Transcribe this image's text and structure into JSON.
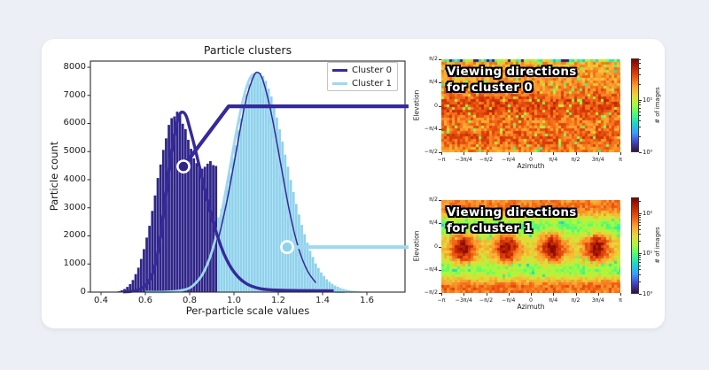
{
  "page": {
    "background": "#edeff6",
    "card_background": "#ffffff"
  },
  "colors": {
    "cluster0_bar": "#2f2589",
    "cluster0_line": "#36299a",
    "cluster1_bar": "#8fd2ec",
    "cluster1_line": "#9fd8ee",
    "axis": "#2b2b2b",
    "text": "#1c1c1c"
  },
  "chart_data": [
    {
      "type": "histogram",
      "title": "Particle clusters",
      "xlabel": "Per-particle scale values",
      "ylabel": "Particle count",
      "xlim": [
        0.352,
        1.772
      ],
      "ylim": [
        0,
        8220
      ],
      "x_tick_labels": [
        "0.4",
        "0.6",
        "0.8",
        "1.0",
        "1.2",
        "1.4",
        "1.6"
      ],
      "x_tick_values": [
        0.4,
        0.6,
        0.8,
        1.0,
        1.2,
        1.4,
        1.6
      ],
      "y_tick_labels": [
        "0",
        "1000",
        "2000",
        "3000",
        "4000",
        "5000",
        "6000",
        "7000",
        "8000"
      ],
      "y_tick_values": [
        0,
        1000,
        2000,
        3000,
        4000,
        5000,
        6000,
        7000,
        8000
      ],
      "grid": false,
      "legend": {
        "position": "upper right",
        "entries": [
          {
            "label": "Cluster 0",
            "color": "#36299a"
          },
          {
            "label": "Cluster 1",
            "color": "#9fd8ee"
          }
        ]
      },
      "bin_width": 0.0125,
      "series": [
        {
          "name": "Cluster 0",
          "color": "#2f2589",
          "bin_start": 0.475,
          "counts": [
            30,
            65,
            110,
            185,
            285,
            430,
            640,
            870,
            1180,
            1530,
            1940,
            2360,
            2890,
            3440,
            4060,
            4540,
            5060,
            5470,
            5950,
            6190,
            6250,
            6420,
            6300,
            5990,
            5800,
            5420,
            5100,
            4760,
            4590,
            4420,
            4390,
            4460,
            4570,
            4660,
            4520,
            4490
          ]
        },
        {
          "name": "Cluster 1",
          "color": "#8fd2ec",
          "bin_start": 0.925,
          "counts": [
            2650,
            2960,
            3340,
            3760,
            4240,
            4760,
            5230,
            5760,
            6180,
            6670,
            7040,
            7410,
            7660,
            7790,
            7840,
            7810,
            7690,
            7520,
            7240,
            6960,
            6590,
            6210,
            5790,
            5360,
            4890,
            4460,
            3990,
            3560,
            3140,
            2760,
            2390,
            2060,
            1760,
            1470,
            1250,
            1020,
            860,
            700,
            575,
            455,
            370,
            295,
            232,
            186,
            144,
            114,
            88,
            67,
            52,
            40,
            30,
            22
          ]
        }
      ],
      "fit_curves": [
        {
          "name": "cluster1-fit",
          "color": "#9fd8ee",
          "width": 2.8,
          "points": [
            [
              0.6,
              3
            ],
            [
              0.7,
              8
            ],
            [
              0.78,
              92
            ],
            [
              0.82,
              264
            ],
            [
              0.86,
              662
            ],
            [
              0.9,
              1431
            ],
            [
              0.94,
              2681
            ],
            [
              0.98,
              4343
            ],
            [
              1.02,
              6087
            ],
            [
              1.06,
              7377
            ],
            [
              1.093,
              7750
            ],
            [
              1.13,
              7284
            ],
            [
              1.17,
              5925
            ],
            [
              1.21,
              4168
            ],
            [
              1.25,
              2536
            ],
            [
              1.29,
              1334
            ],
            [
              1.33,
              608
            ],
            [
              1.37,
              242
            ],
            [
              1.41,
              83
            ],
            [
              1.45,
              25
            ],
            [
              1.5,
              4
            ]
          ]
        },
        {
          "name": "cluster1-fit-outline",
          "color": "#36299a",
          "width": 1.5,
          "points": [
            [
              0.93,
              1900
            ],
            [
              0.97,
              3300
            ],
            [
              1.01,
              5000
            ],
            [
              1.05,
              6700
            ],
            [
              1.08,
              7500
            ],
            [
              1.102,
              7820
            ],
            [
              1.13,
              7550
            ],
            [
              1.17,
              6300
            ],
            [
              1.21,
              4600
            ],
            [
              1.25,
              2900
            ],
            [
              1.29,
              1600
            ],
            [
              1.33,
              780
            ],
            [
              1.37,
              330
            ]
          ]
        },
        {
          "name": "cluster0-fit",
          "color": "#36299a",
          "width": 3.4,
          "points": [
            [
              0.5,
              10
            ],
            [
              0.54,
              35
            ],
            [
              0.58,
              120
            ],
            [
              0.61,
              330
            ],
            [
              0.64,
              850
            ],
            [
              0.67,
              2000
            ],
            [
              0.7,
              3950
            ],
            [
              0.72,
              5100
            ],
            [
              0.74,
              5950
            ],
            [
              0.755,
              6330
            ],
            [
              0.77,
              6400
            ],
            [
              0.785,
              6250
            ],
            [
              0.8,
              5850
            ],
            [
              0.82,
              5250
            ],
            [
              0.84,
              4600
            ],
            [
              0.86,
              3950
            ],
            [
              0.88,
              3300
            ],
            [
              0.9,
              2680
            ],
            [
              0.92,
              2130
            ],
            [
              0.94,
              1660
            ],
            [
              0.96,
              1270
            ],
            [
              0.99,
              830
            ],
            [
              1.02,
              530
            ],
            [
              1.05,
              330
            ],
            [
              1.08,
              210
            ],
            [
              1.12,
              120
            ],
            [
              1.16,
              85
            ],
            [
              1.22,
              65
            ],
            [
              1.3,
              55
            ],
            [
              1.38,
              50
            ],
            [
              1.45,
              45
            ]
          ]
        }
      ],
      "annotations": [
        {
          "name": "cluster0-connector",
          "color": "#36299a",
          "marker_fill": "#2f2589",
          "anchor": [
            0.772,
            4470
          ],
          "elbow": [
            0.976,
            6610
          ],
          "end": [
            1.788,
            6610
          ]
        },
        {
          "name": "cluster1-connector",
          "color": "#9fd8ee",
          "marker_fill": "#8fd2ec",
          "anchor": [
            1.24,
            1600
          ],
          "end": [
            1.788,
            1600
          ]
        }
      ]
    },
    {
      "type": "heatmap",
      "title_lines": [
        "Viewing directions",
        "for cluster 0"
      ],
      "xlabel": "Azimuth",
      "ylabel": "Elevation",
      "x_tick_labels": [
        "−π",
        "−3π/4",
        "−π/2",
        "−π/4",
        "0",
        "π/4",
        "π/2",
        "3π/4",
        "π"
      ],
      "y_tick_labels": [
        "π/2",
        "π/4",
        "0",
        "−π/4",
        "−π/2"
      ],
      "colormap": "turbo",
      "seed": 7,
      "colorbar": {
        "label": "# of images",
        "scale": "log",
        "tick_labels": [
          "10¹",
          "10⁰"
        ],
        "tick_values": [
          10,
          1
        ],
        "vmax_approx": 60
      },
      "pattern": {
        "base": 0.7,
        "noise": 0.18,
        "bands": [
          {
            "v": 0.5,
            "sigma": 0.18,
            "amp": 0.13
          },
          {
            "v": 0.86,
            "sigma": 0.12,
            "amp": 0.1
          }
        ],
        "speckle": {
          "prob": 0.055,
          "delta": -0.28
        },
        "top_edge": {
          "rows_v": 0.028
        }
      }
    },
    {
      "type": "heatmap",
      "title_lines": [
        "Viewing directions",
        "for cluster 1"
      ],
      "xlabel": "Azimuth",
      "ylabel": "Elevation",
      "x_tick_labels": [
        "−π",
        "−3π/4",
        "−π/2",
        "−π/4",
        "0",
        "π/4",
        "π/2",
        "3π/4",
        "π"
      ],
      "y_tick_labels": [
        "π/2",
        "π/4",
        "0",
        "−π/4",
        "−π/2"
      ],
      "colormap": "turbo",
      "seed": 21,
      "colorbar": {
        "label": "# of images",
        "scale": "log",
        "tick_labels": [
          "10²",
          "10¹",
          "10⁰"
        ],
        "tick_values": [
          100,
          10,
          1
        ],
        "vmax_approx": 250
      },
      "pattern": {
        "base": 0.6,
        "noise": 0.14,
        "blobs": {
          "centers_u": [
            0.115,
            0.36,
            0.615,
            0.865
          ],
          "v": 0.52,
          "sigma_u": 0.07,
          "sigma_v": 0.16,
          "amp": 0.38
        },
        "bands": [
          {
            "v": 0.05,
            "sigma": 0.12,
            "amp": 0.16
          },
          {
            "v": 0.96,
            "sigma": 0.1,
            "amp": 0.18
          }
        ],
        "dips": [
          {
            "v": 0.28,
            "sigma": 0.1,
            "amp": 0.18
          },
          {
            "v": 0.75,
            "sigma": 0.09,
            "amp": 0.15
          }
        ],
        "speckle": {
          "prob": 0.05,
          "delta": -0.16,
          "zones": [
            [
              0.15,
              0.42
            ],
            [
              0.6,
              0.85
            ]
          ]
        }
      }
    }
  ]
}
